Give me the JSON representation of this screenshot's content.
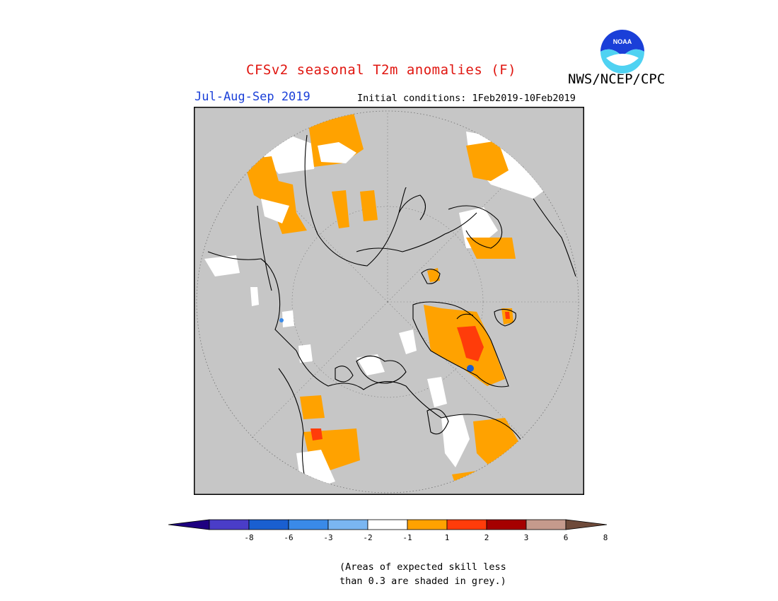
{
  "header": {
    "title": "CFSv2 seasonal T2m anomalies (F)",
    "org": "NWS/NCEP/CPC",
    "period": "Jul-Aug-Sep 2019",
    "initial_conditions": "Initial conditions: 1Feb2019-10Feb2019",
    "logo_text": "NOAA"
  },
  "legend": {
    "ticks": [
      "-8",
      "-6",
      "-3",
      "-2",
      "-1",
      "1",
      "2",
      "3",
      "6",
      "8"
    ],
    "colors": [
      "#1e0080",
      "#4a3dc8",
      "#1a5fd0",
      "#3a8ae8",
      "#7ab6f2",
      "#ffffff",
      "#ffa200",
      "#ff3c0a",
      "#a50000",
      "#c59a8c",
      "#6e4a3a"
    ],
    "note_line1": "(Areas of expected skill less",
    "note_line2": "than 0.3 are shaded in grey.)"
  },
  "map": {
    "projection": "north-polar-stereographic",
    "skill_mask_color": "#c6c6c6",
    "regions": [
      {
        "name": "northern-asia-anomaly",
        "category": "1 to 2"
      },
      {
        "name": "greenland-anomaly",
        "category": "2 to 3"
      },
      {
        "name": "northern-europe-anomaly",
        "category": "1 to 2"
      },
      {
        "name": "eastern-canada-anomaly",
        "category": "1 to 2"
      },
      {
        "name": "western-us-anomaly",
        "category": "1 to 2"
      }
    ]
  }
}
